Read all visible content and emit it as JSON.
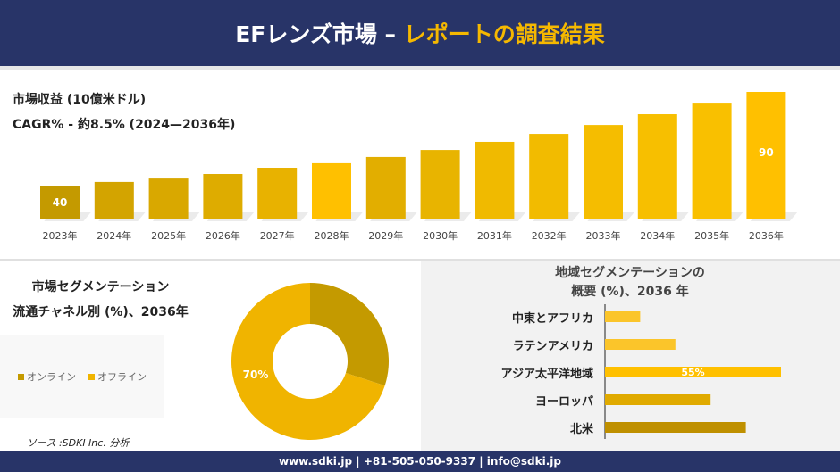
{
  "header": {
    "title_white": "EFレンズ市場 –",
    "title_orange": "レポートの調査結果"
  },
  "revenue": {
    "title": "市場収益 (10億米ドル)",
    "cagr": "CAGR% - 約8.5% (2024—2036年)"
  },
  "segment": {
    "title_line1": "市場セグメンテーション",
    "title_line2": "流通チャネル別 (%)、2036年"
  },
  "regional": {
    "title_line1": "地域セグメンテーションの",
    "title_line2": "概要 (%)、2036 年"
  },
  "source": "ソース :SDKI Inc. 分析",
  "footer": "www.sdki.jp | +81-505-050-9337 | info@sdki.jp",
  "chart_data": [
    {
      "type": "bar",
      "categories": [
        "2023年",
        "2024年",
        "2025年",
        "2026年",
        "2027年",
        "2028年",
        "2029年",
        "2030年",
        "2031年",
        "2032年",
        "2033年",
        "2034年",
        "2035年",
        "2036年"
      ],
      "values": [
        40,
        42.4,
        44.2,
        46.6,
        49.9,
        52.3,
        55.6,
        59.3,
        63.6,
        67.8,
        72.5,
        78.2,
        84.3,
        90
      ],
      "data_labels": {
        "0": "40",
        "13": "90"
      },
      "colors": [
        "#c49a00",
        "#d3a400",
        "#d9a800",
        "#deac00",
        "#e8b200",
        "#ffc000",
        "#e2ae00",
        "#e8b400",
        "#f0ba00",
        "#f2bb00",
        "#f5bd00",
        "#f7bf00",
        "#f9c000",
        "#ffc000"
      ]
    },
    {
      "type": "pie",
      "donut": true,
      "categories": [
        "オンライン",
        "オフライン"
      ],
      "values": [
        30,
        70
      ],
      "colors": [
        "#c49a00",
        "#f0b400"
      ],
      "data_labels": {
        "1": "70%"
      }
    },
    {
      "type": "bar",
      "orientation": "horizontal",
      "categories": [
        "中東とアフリカ",
        "ラテンアメリカ",
        "アジア太平洋地域",
        "ヨーロッパ",
        "北米"
      ],
      "values": [
        11,
        22,
        55,
        33,
        44
      ],
      "data_labels": {
        "2": "55%"
      },
      "colors": [
        "#fbc52a",
        "#fbc52a",
        "#ffc000",
        "#e0aa00",
        "#bf9000"
      ]
    }
  ]
}
